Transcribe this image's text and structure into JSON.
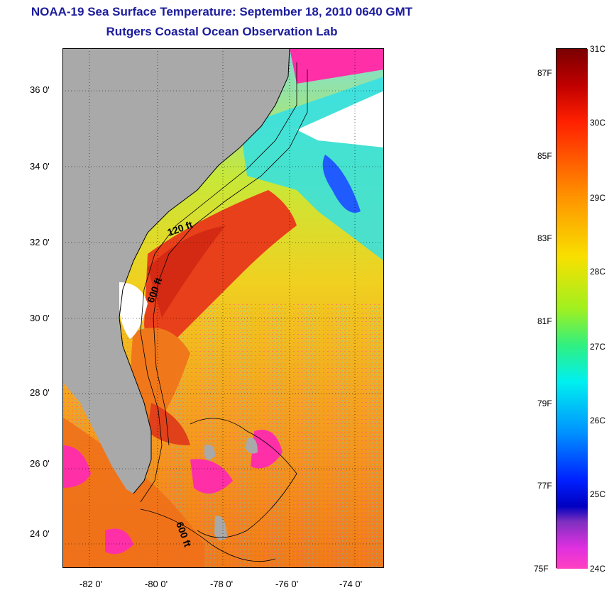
{
  "title": {
    "line1": "NOAA-19 Sea Surface Temperature:  September 18, 2010 0640 GMT",
    "line2": "Rutgers Coastal Ocean Observation Lab"
  },
  "axes": {
    "lat_labels": [
      "36 0'",
      "34 0'",
      "32 0'",
      "30 0'",
      "28 0'",
      "26 0'",
      "24 0'"
    ],
    "lon_labels": [
      "-82 0'",
      "-80 0'",
      "-78 0'",
      "-76 0'",
      "-74 0'"
    ]
  },
  "isobaths": [
    "120 ft",
    "600 ft",
    "600 ft"
  ],
  "colorbar": {
    "celsius": [
      "31C",
      "30C",
      "29C",
      "28C",
      "27C",
      "26C",
      "25C",
      "24C"
    ],
    "fahrenheit": [
      "87F",
      "85F",
      "83F",
      "81F",
      "79F",
      "77F",
      "75F"
    ]
  },
  "colors": {
    "title": "#1c1c9c",
    "land": "#a9a9a9",
    "warm": "#e03010",
    "cool": "#00e0e0",
    "cloud": "#ff2fa8"
  }
}
